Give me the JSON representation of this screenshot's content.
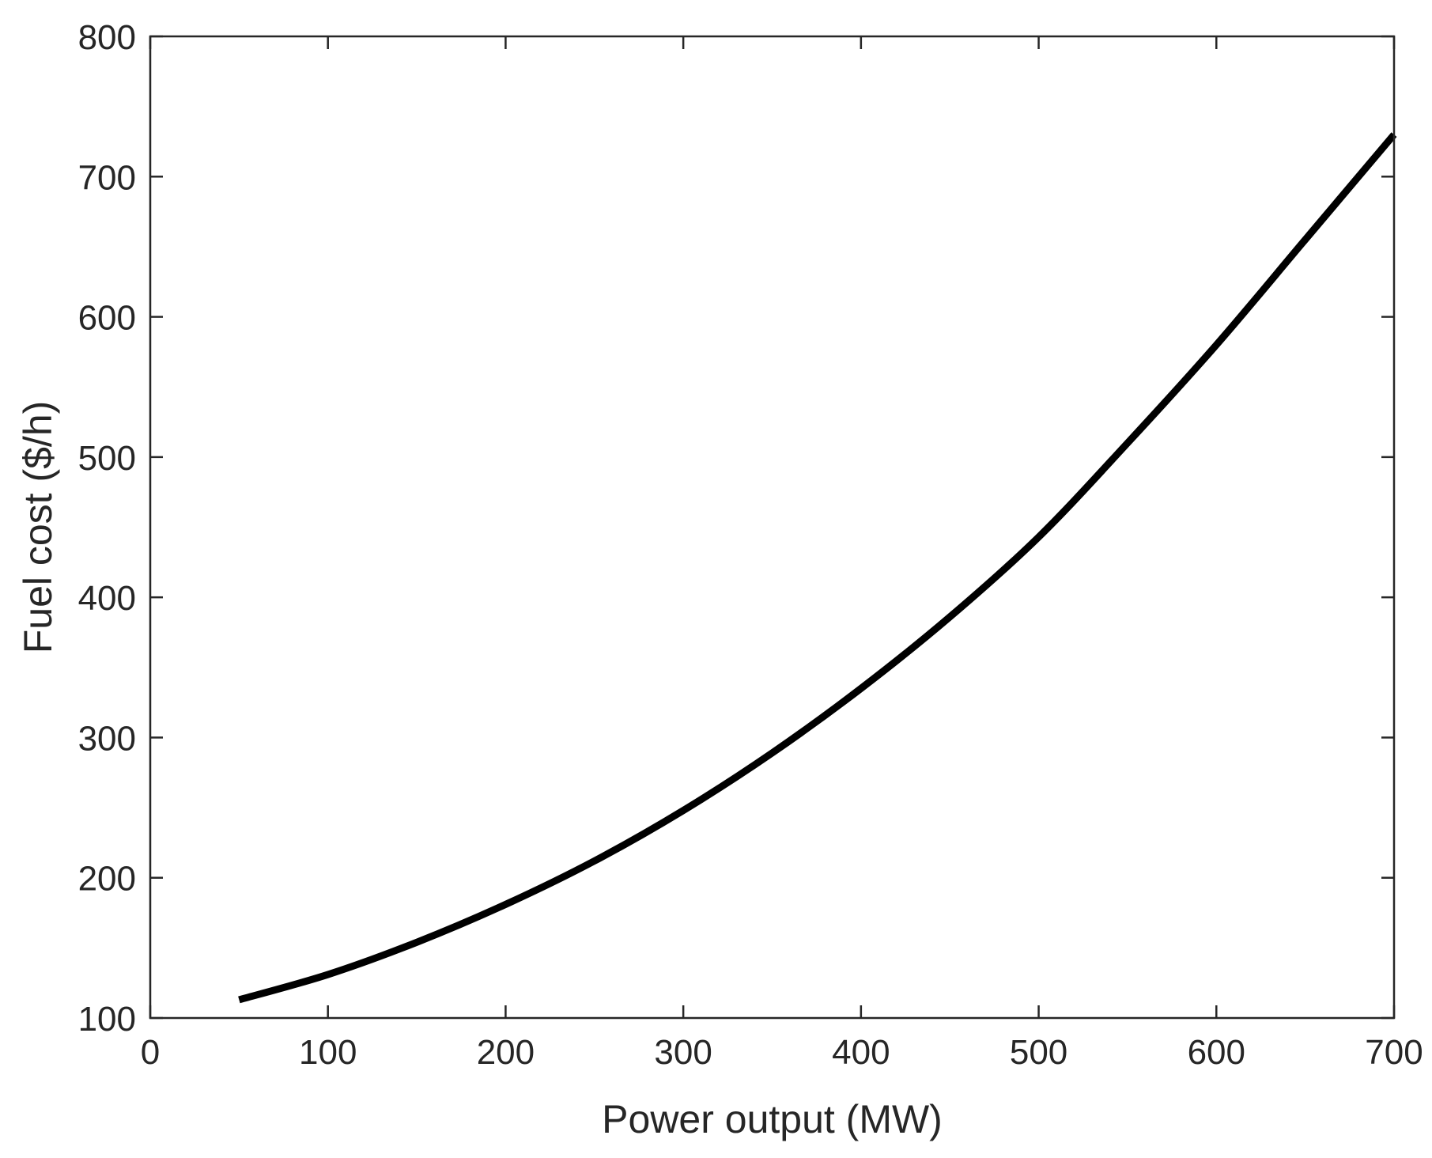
{
  "chart_data": {
    "type": "line",
    "title": "",
    "xlabel": "Power output (MW)",
    "ylabel": "Fuel cost ($/h)",
    "xlim": [
      0,
      700
    ],
    "ylim": [
      100,
      800
    ],
    "xticks": [
      0,
      100,
      200,
      300,
      400,
      500,
      600,
      700
    ],
    "yticks": [
      100,
      200,
      300,
      400,
      500,
      600,
      700,
      800
    ],
    "xtick_labels": [
      "0",
      "100",
      "200",
      "300",
      "400",
      "500",
      "600",
      "700"
    ],
    "ytick_labels": [
      "100",
      "200",
      "300",
      "400",
      "500",
      "600",
      "700",
      "800"
    ],
    "grid": false,
    "legend": "none",
    "series": [
      {
        "color": "#000000",
        "x": [
          50,
          100,
          150,
          200,
          250,
          300,
          350,
          400,
          450,
          500,
          550,
          600,
          650,
          700
        ],
        "y": [
          113,
          131,
          154,
          181,
          212,
          248,
          289,
          335,
          386,
          443,
          510,
          580,
          655,
          730
        ]
      }
    ]
  }
}
